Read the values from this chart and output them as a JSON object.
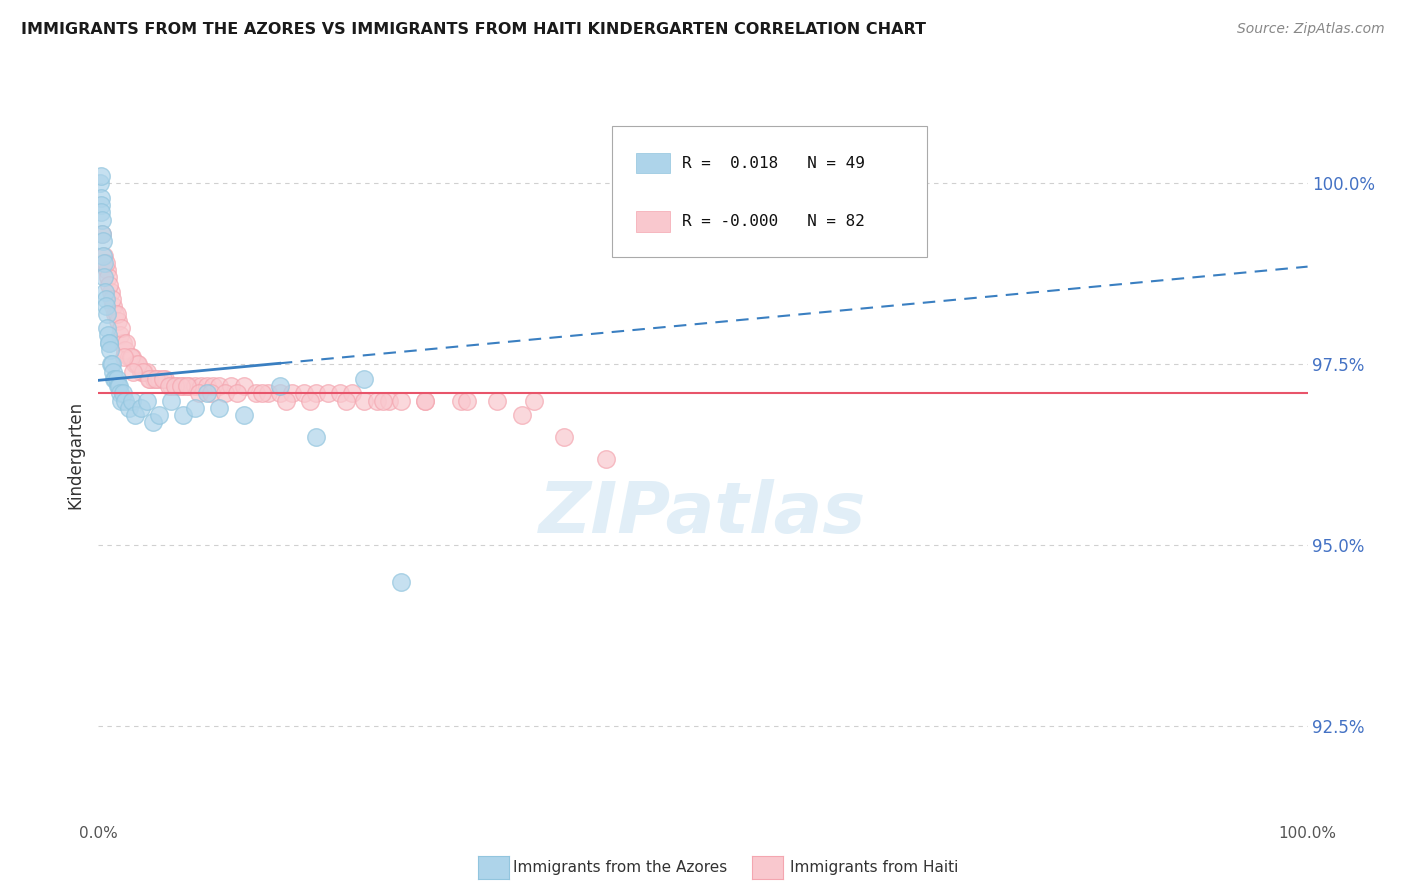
{
  "title": "IMMIGRANTS FROM THE AZORES VS IMMIGRANTS FROM HAITI KINDERGARTEN CORRELATION CHART",
  "source": "Source: ZipAtlas.com",
  "ylabel": "Kindergarten",
  "ytick_values": [
    92.5,
    95.0,
    97.5,
    100.0
  ],
  "xlim": [
    0,
    100
  ],
  "ylim": [
    91.2,
    101.3
  ],
  "legend_azores": "Immigrants from the Azores",
  "legend_haiti": "Immigrants from Haiti",
  "R_azores": "0.018",
  "N_azores": "49",
  "R_haiti": "-0.000",
  "N_haiti": "82",
  "color_azores": "#92c5de",
  "color_haiti": "#f4a6b0",
  "color_azores_fill": "#aed4ea",
  "color_haiti_fill": "#f9c8ce",
  "color_azores_line": "#3a7fc1",
  "color_haiti_line": "#e8546a",
  "background_color": "#ffffff",
  "grid_color": "#d0d0d0",
  "azores_line_y0": 97.28,
  "azores_line_y1": 98.85,
  "azores_line_solid_end_x": 15,
  "haiti_line_y": 97.1,
  "azores_x": [
    0.15,
    0.18,
    0.2,
    0.22,
    0.25,
    0.28,
    0.3,
    0.35,
    0.4,
    0.45,
    0.5,
    0.55,
    0.6,
    0.65,
    0.7,
    0.75,
    0.8,
    0.85,
    0.9,
    0.95,
    1.0,
    1.1,
    1.2,
    1.3,
    1.4,
    1.5,
    1.6,
    1.7,
    1.8,
    1.9,
    2.0,
    2.2,
    2.5,
    2.8,
    3.0,
    3.5,
    4.0,
    4.5,
    5.0,
    6.0,
    7.0,
    8.0,
    9.0,
    10.0,
    12.0,
    15.0,
    18.0,
    22.0,
    25.0
  ],
  "azores_y": [
    100.0,
    99.8,
    100.1,
    99.7,
    99.6,
    99.5,
    99.3,
    99.2,
    99.0,
    98.9,
    98.7,
    98.5,
    98.4,
    98.3,
    98.2,
    98.0,
    97.9,
    97.8,
    97.8,
    97.7,
    97.5,
    97.5,
    97.4,
    97.3,
    97.3,
    97.3,
    97.2,
    97.2,
    97.1,
    97.0,
    97.1,
    97.0,
    96.9,
    97.0,
    96.8,
    96.9,
    97.0,
    96.7,
    96.8,
    97.0,
    96.8,
    96.9,
    97.1,
    96.9,
    96.8,
    97.2,
    96.5,
    97.3,
    94.5
  ],
  "haiti_x": [
    0.3,
    0.5,
    0.7,
    0.8,
    1.0,
    1.2,
    1.4,
    1.6,
    1.8,
    2.0,
    2.2,
    2.5,
    2.8,
    3.0,
    3.2,
    3.5,
    3.8,
    4.0,
    4.3,
    4.6,
    5.0,
    5.5,
    6.0,
    6.5,
    7.0,
    7.5,
    8.0,
    8.5,
    9.0,
    9.5,
    10.0,
    11.0,
    12.0,
    13.0,
    14.0,
    15.0,
    16.0,
    17.0,
    18.0,
    19.0,
    20.0,
    21.0,
    22.0,
    23.0,
    24.0,
    25.0,
    27.0,
    30.0,
    33.0,
    36.0,
    0.6,
    0.9,
    1.1,
    1.5,
    1.9,
    2.3,
    2.7,
    3.3,
    3.7,
    4.2,
    4.8,
    5.3,
    5.8,
    6.3,
    6.8,
    7.3,
    8.3,
    9.3,
    10.5,
    11.5,
    13.5,
    15.5,
    17.5,
    20.5,
    23.5,
    27.0,
    30.5,
    35.0,
    38.5,
    42.0,
    2.1,
    2.9
  ],
  "haiti_y": [
    99.3,
    99.0,
    98.8,
    98.7,
    98.5,
    98.3,
    98.2,
    98.1,
    97.9,
    97.8,
    97.7,
    97.6,
    97.6,
    97.5,
    97.5,
    97.4,
    97.4,
    97.4,
    97.3,
    97.3,
    97.3,
    97.3,
    97.2,
    97.2,
    97.2,
    97.2,
    97.2,
    97.2,
    97.2,
    97.2,
    97.2,
    97.2,
    97.2,
    97.1,
    97.1,
    97.1,
    97.1,
    97.1,
    97.1,
    97.1,
    97.1,
    97.1,
    97.0,
    97.0,
    97.0,
    97.0,
    97.0,
    97.0,
    97.0,
    97.0,
    98.9,
    98.6,
    98.4,
    98.2,
    98.0,
    97.8,
    97.6,
    97.5,
    97.4,
    97.3,
    97.3,
    97.3,
    97.2,
    97.2,
    97.2,
    97.2,
    97.1,
    97.1,
    97.1,
    97.1,
    97.1,
    97.0,
    97.0,
    97.0,
    97.0,
    97.0,
    97.0,
    96.8,
    96.5,
    96.2,
    97.6,
    97.4
  ]
}
